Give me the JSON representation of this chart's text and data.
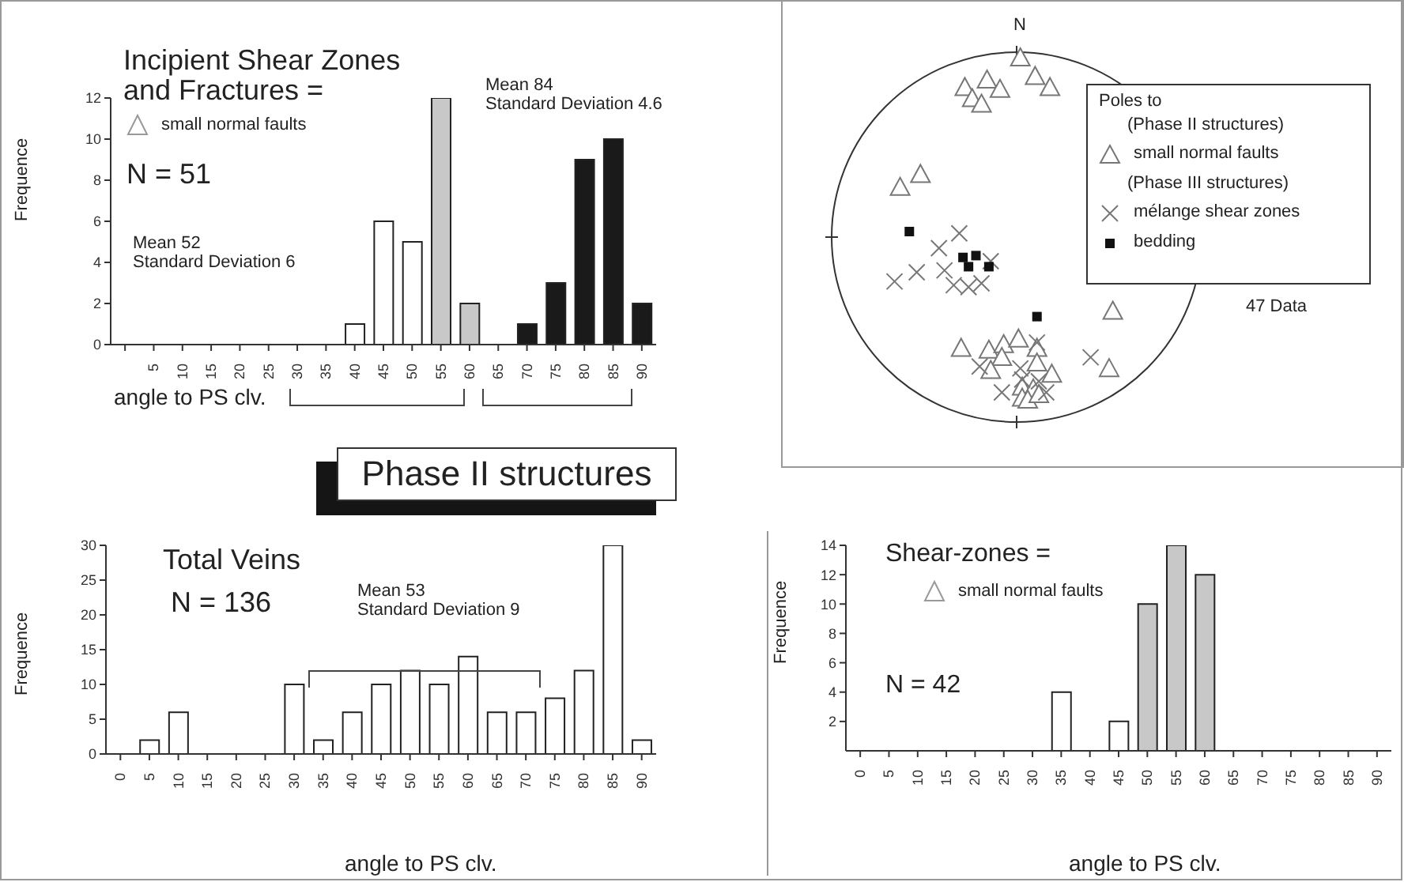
{
  "chart_data": [
    {
      "type": "bar",
      "title": "Incipient Shear Zones and Fractures =",
      "xlabel": "angle to PS clv.",
      "ylabel": "Frequence",
      "categories": [
        null,
        "5",
        "10",
        "15",
        "20",
        "25",
        "30",
        "35",
        "40",
        "45",
        "50",
        "55",
        "60",
        "65",
        "70",
        "75",
        "80",
        "85",
        "90"
      ],
      "values": [
        0,
        0,
        0,
        0,
        0,
        0,
        0,
        0,
        1,
        6,
        5,
        12,
        2,
        0,
        1,
        3,
        9,
        10,
        2
      ],
      "colors": [
        "#ffffff",
        "#ffffff",
        "#ffffff",
        "#ffffff",
        "#ffffff",
        "#ffffff",
        "#ffffff",
        "#ffffff",
        "#ffffff",
        "#ffffff",
        "#ffffff",
        "#c8c8c8",
        "#c8c8c8",
        "#ffffff",
        "#1a1a1a",
        "#1a1a1a",
        "#1a1a1a",
        "#1a1a1a",
        "#1a1a1a"
      ],
      "ylim": [
        0,
        12
      ],
      "yticks": [
        0,
        2,
        4,
        6,
        8,
        10,
        12
      ],
      "annotations": [
        "small normal faults",
        "N = 51",
        "Mean 52\nStandard Deviation 6",
        "Mean 84\nStandard Deviation 4.6"
      ]
    },
    {
      "type": "other",
      "annotations": [
        "Poles to",
        "(Phase II structures)",
        "small normal faults",
        "(Phase III structures)",
        "mélange shear zones",
        "bedding",
        "N",
        "47 Data"
      ]
    },
    {
      "type": "other",
      "title": "Phase II structures"
    },
    {
      "type": "bar",
      "title": "Total Veins",
      "xlabel": "angle to PS clv.",
      "ylabel": "Frequence",
      "categories": [
        "0",
        "5",
        "10",
        "15",
        "20",
        "25",
        "30",
        "35",
        "40",
        "45",
        "50",
        "55",
        "60",
        "65",
        "70",
        "75",
        "80",
        "85",
        "90"
      ],
      "values": [
        0,
        2,
        6,
        0,
        0,
        0,
        10,
        2,
        6,
        10,
        12,
        10,
        14,
        6,
        6,
        8,
        12,
        30,
        2
      ],
      "color": "#ffffff",
      "ylim": [
        0,
        30
      ],
      "yticks": [
        0,
        5,
        10,
        15,
        20,
        25,
        30
      ],
      "annotations": [
        "N = 136",
        "Mean 53\nStandard Deviation 9"
      ]
    },
    {
      "type": "bar",
      "title": "Shear-zones =",
      "xlabel": "angle to PS clv.",
      "ylabel": "Frequence",
      "categories": [
        "0",
        "5",
        "10",
        "15",
        "20",
        "25",
        "30",
        "35",
        "40",
        "45",
        "50",
        "55",
        "60",
        "65",
        "70",
        "75",
        "80",
        "85",
        "90"
      ],
      "values": [
        0,
        0,
        0,
        0,
        0,
        0,
        0,
        4,
        0,
        2,
        10,
        14,
        12,
        0,
        0,
        0,
        0,
        0,
        0
      ],
      "colors": [
        "#ffffff",
        "#ffffff",
        "#ffffff",
        "#ffffff",
        "#ffffff",
        "#ffffff",
        "#ffffff",
        "#ffffff",
        "#ffffff",
        "#ffffff",
        "#c8c8c8",
        "#c8c8c8",
        "#c8c8c8",
        "#ffffff",
        "#ffffff",
        "#ffffff",
        "#ffffff",
        "#ffffff",
        "#ffffff"
      ],
      "ylim": [
        0,
        14
      ],
      "yticks": [
        2,
        4,
        6,
        8,
        10,
        12,
        14
      ],
      "annotations": [
        "small normal faults",
        "N = 42"
      ]
    }
  ]
}
